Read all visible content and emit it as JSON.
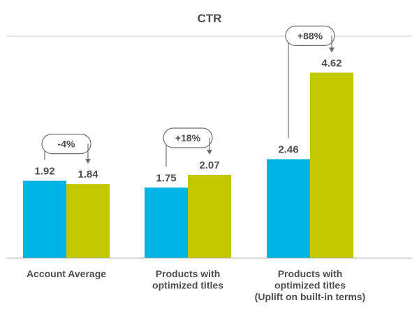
{
  "chart_data": {
    "type": "bar",
    "title": "CTR",
    "categories": [
      [
        "Account Average"
      ],
      [
        "Products with",
        "optimized titles"
      ],
      [
        "Products with",
        "optimized titles",
        "(Uplift on built-in terms)"
      ]
    ],
    "series": [
      {
        "color": "#00b4e6",
        "values": [
          1.92,
          1.75,
          2.46
        ]
      },
      {
        "color": "#c2c800",
        "values": [
          1.84,
          2.07,
          4.62
        ]
      }
    ],
    "data_labels": [
      [
        "1.92",
        "1.84"
      ],
      [
        "1.75",
        "2.07"
      ],
      [
        "2.46",
        "4.62"
      ]
    ],
    "annotations": [
      "-4%",
      "+18%",
      "+88%"
    ],
    "ylim": [
      0,
      5.2
    ],
    "xlabel": "",
    "ylabel": "",
    "grid": false,
    "legend": "none"
  },
  "colors": {
    "text": "#4d4d4d",
    "rule": "#c8c8c8",
    "axis": "#9a9a9a",
    "annotation": "#6e6e6e"
  }
}
